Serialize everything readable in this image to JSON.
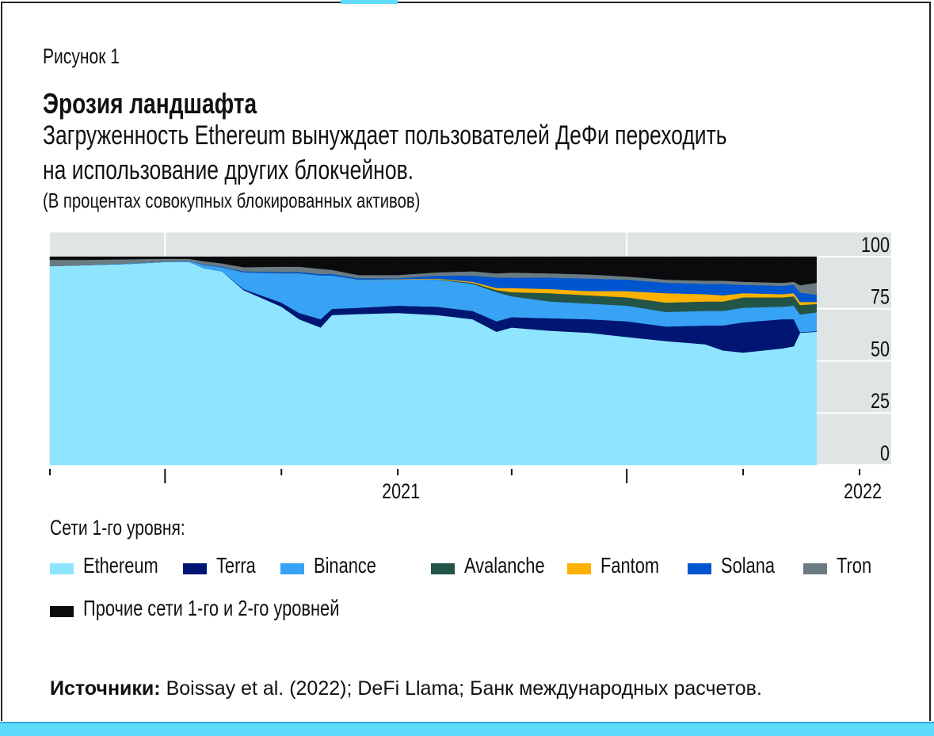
{
  "header": {
    "figure_label": "Рисунок 1",
    "title": "Эрозия ландшафта",
    "subtitle_line1": "Загруженность Ethereum вынуждает пользователей ДеФи переходить",
    "subtitle_line2": "на использование других блокчейнов.",
    "unit": "(В процентах совокупных блокированных активов)"
  },
  "legend": {
    "title": "Сети 1-го уровня:"
  },
  "source": {
    "label": "Источники:",
    "text": " Boissay et al. (2022); DeFi Llama; Банк международных расчетов."
  },
  "chart_data": {
    "type": "area",
    "stacked": true,
    "title": "Эрозия ландшафта",
    "ylabel": "(В процентах совокупных блокированных активов)",
    "xlim": [
      "2020-04-01",
      "2022-02-15"
    ],
    "ylim": [
      0,
      112
    ],
    "y_ticks": [
      0,
      25,
      50,
      75,
      100
    ],
    "y_axis_side": "right",
    "x_tick_labels": [
      {
        "date": "2021-01-01",
        "label": "2021"
      },
      {
        "date": "2022-01-01",
        "label": "2022"
      }
    ],
    "x_ticks": [
      "2020-04-01",
      "2020-07-01",
      "2020-10-01",
      "2021-01-01",
      "2021-04-01",
      "2021-07-01",
      "2021-10-01",
      "2022-01-01"
    ],
    "x_major_ticks": [
      "2020-07-01",
      "2021-07-01"
    ],
    "grid": true,
    "legend_placement": "bottom",
    "x": [
      "2020-04-01",
      "2020-05-01",
      "2020-06-01",
      "2020-07-01",
      "2020-07-20",
      "2020-08-01",
      "2020-08-15",
      "2020-09-01",
      "2020-10-01",
      "2020-10-15",
      "2020-11-01",
      "2020-11-10",
      "2020-12-01",
      "2021-01-01",
      "2021-02-01",
      "2021-03-01",
      "2021-03-20",
      "2021-04-01",
      "2021-05-01",
      "2021-06-01",
      "2021-07-01",
      "2021-08-01",
      "2021-09-01",
      "2021-09-15",
      "2021-10-01",
      "2021-11-01",
      "2021-11-10",
      "2021-11-15",
      "2021-11-28"
    ],
    "series": [
      {
        "name": "Ethereum",
        "color": "#8ee5fd",
        "values": [
          95.5,
          96,
          96.5,
          97.5,
          97.5,
          94.5,
          93,
          84,
          76,
          70,
          66,
          72,
          72.5,
          73,
          72,
          70,
          64,
          66,
          64.5,
          63.5,
          61.5,
          59.5,
          58,
          55,
          54,
          56,
          57,
          63.5,
          64
        ]
      },
      {
        "name": "Terra",
        "color": "#001672",
        "values": [
          0,
          0,
          0,
          0,
          0,
          0,
          0,
          0.5,
          2,
          3,
          4,
          3,
          3,
          3.5,
          4,
          4,
          5,
          5,
          6,
          6.5,
          7.5,
          7,
          9,
          12,
          14.5,
          14,
          13,
          0.3,
          0.3
        ]
      },
      {
        "name": "Binance",
        "color": "#38a3f5",
        "values": [
          0,
          0,
          0.3,
          0.2,
          0.5,
          1.5,
          2,
          8,
          14,
          19,
          21,
          16,
          13.5,
          12.5,
          13,
          13,
          14,
          10,
          8,
          7.5,
          7.5,
          7,
          7,
          7,
          7,
          6,
          6.5,
          8.5,
          9
        ]
      },
      {
        "name": "Avalanche",
        "color": "#225448",
        "values": [
          0,
          0,
          0,
          0,
          0,
          0,
          0,
          0,
          0,
          0,
          0,
          0,
          0,
          0,
          0.2,
          0.5,
          1,
          2,
          4,
          4,
          4,
          4.5,
          4.5,
          4.5,
          5,
          4.5,
          4.5,
          4.5,
          4
        ]
      },
      {
        "name": "Fantom",
        "color": "#fdb100",
        "values": [
          0,
          0,
          0,
          0,
          0,
          0,
          0,
          0,
          0,
          0,
          0,
          0,
          0,
          0.2,
          0.3,
          0.5,
          1,
          2,
          2,
          2,
          3,
          4.5,
          3.5,
          3,
          2,
          1.5,
          1.5,
          1.5,
          1
        ]
      },
      {
        "name": "Solana",
        "color": "#0055d0",
        "values": [
          0,
          0,
          0,
          0,
          0,
          0.3,
          0.3,
          0.5,
          0.7,
          0.7,
          0.7,
          0.7,
          0.7,
          0.5,
          1.5,
          3,
          5,
          5,
          5.5,
          6,
          5.5,
          5,
          5,
          5.5,
          4,
          4,
          4,
          4.5,
          3.5
        ]
      },
      {
        "name": "Tron",
        "color": "#6b7b82",
        "values": [
          3,
          2.5,
          2,
          1.3,
          1,
          1.5,
          1.5,
          2,
          2.5,
          2.5,
          2.5,
          2,
          1.5,
          1.5,
          1.5,
          2,
          2,
          2.4,
          2,
          2,
          1.5,
          1.5,
          1.5,
          1.5,
          1.5,
          1.5,
          1.5,
          3.5,
          5.7
        ]
      },
      {
        "name": "Прочие сети 1-го и 2-го уровней",
        "color": "#0b0b0d",
        "values": [
          1.5,
          1.5,
          1.2,
          1,
          1,
          2.2,
          3.2,
          5,
          4.8,
          4.8,
          5.8,
          6.3,
          8.8,
          8.8,
          7.5,
          7,
          8,
          7.6,
          8,
          8.5,
          9.5,
          11,
          11.5,
          11.5,
          12,
          12.5,
          12,
          13.7,
          12.5
        ]
      }
    ]
  },
  "colors": {
    "plot_background": "#dfe4e4",
    "accent_band": "#5fdcfc"
  }
}
